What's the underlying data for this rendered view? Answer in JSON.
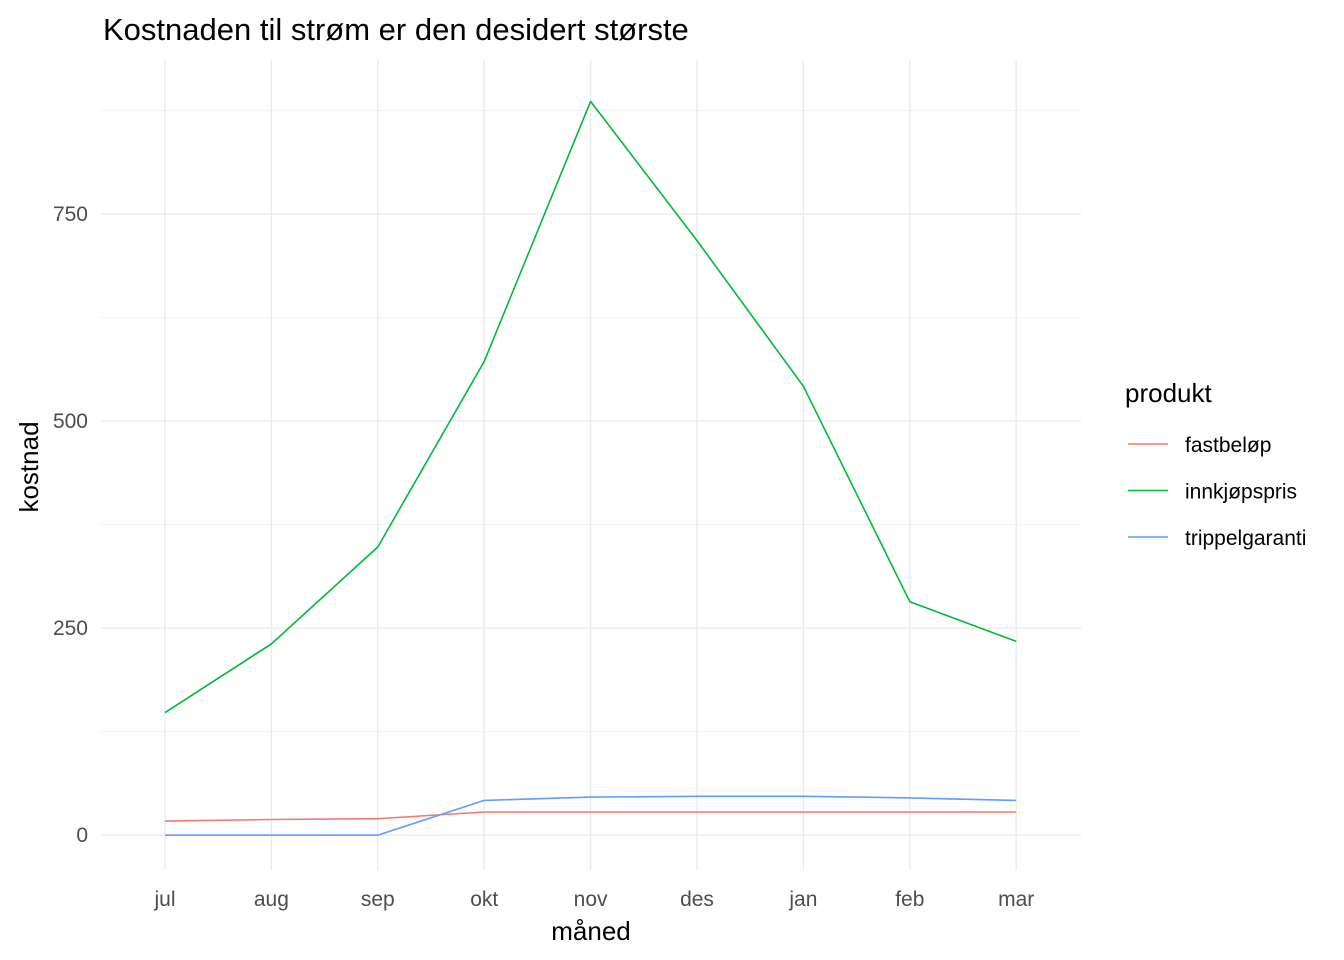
{
  "chart_data": {
    "type": "line",
    "title": "Kostnaden til strøm er den desidert største",
    "xlabel": "måned",
    "ylabel": "kostnad",
    "categories": [
      "jul",
      "aug",
      "sep",
      "okt",
      "nov",
      "des",
      "jan",
      "feb",
      "mar"
    ],
    "y_ticks": [
      0,
      250,
      500,
      750
    ],
    "y_tick_labels": [
      "0",
      "250",
      "500",
      "750"
    ],
    "ylim": [
      -42,
      936
    ],
    "grid": true,
    "legend": {
      "title": "produkt",
      "placement": "right"
    },
    "series": [
      {
        "name": "fastbeløp",
        "color": "#F8766D",
        "values": [
          17,
          19,
          20,
          28,
          28,
          28,
          28,
          28,
          28
        ]
      },
      {
        "name": "innkjøpspris",
        "color": "#00BA38",
        "values": [
          148,
          231,
          348,
          572,
          886,
          718,
          542,
          282,
          234
        ]
      },
      {
        "name": "trippelgaranti",
        "color": "#619CFF",
        "values": [
          0,
          0,
          0,
          42,
          46,
          47,
          47,
          45,
          42
        ]
      }
    ]
  }
}
